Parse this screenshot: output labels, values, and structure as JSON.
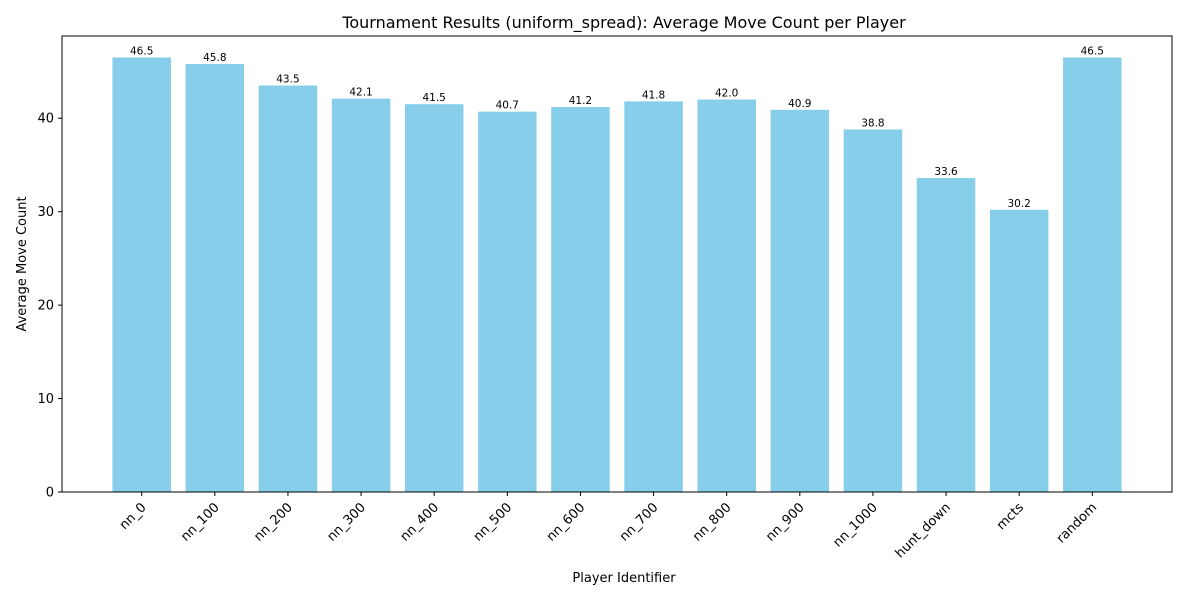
{
  "chart_data": {
    "type": "bar",
    "title": "Tournament Results (uniform_spread): Average Move Count per Player",
    "xlabel": "Player Identifier",
    "ylabel": "Average Move Count",
    "categories": [
      "nn_0",
      "nn_100",
      "nn_200",
      "nn_300",
      "nn_400",
      "nn_500",
      "nn_600",
      "nn_700",
      "nn_800",
      "nn_900",
      "nn_1000",
      "hunt_down",
      "mcts",
      "random"
    ],
    "values": [
      46.5,
      45.8,
      43.5,
      42.1,
      41.5,
      40.7,
      41.2,
      41.8,
      42.0,
      40.9,
      38.8,
      33.6,
      30.2,
      46.5
    ],
    "data_labels": [
      "46.5",
      "45.8",
      "43.5",
      "42.1",
      "41.5",
      "40.7",
      "41.2",
      "41.8",
      "42.0",
      "40.9",
      "38.8",
      "33.6",
      "30.2",
      "46.5"
    ],
    "yticks": [
      0,
      10,
      20,
      30,
      40
    ],
    "ylim": [
      0,
      48.8
    ],
    "bar_color": "#87CEEB",
    "grid": false,
    "legend": "none"
  }
}
